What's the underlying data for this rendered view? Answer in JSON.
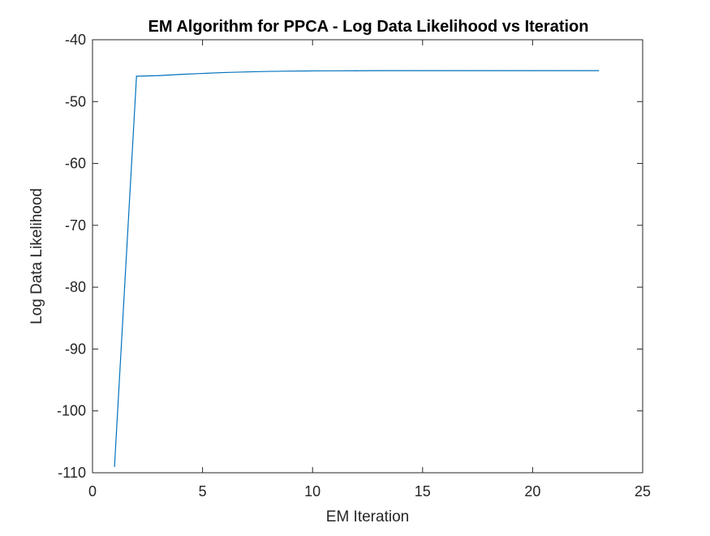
{
  "chart_data": {
    "type": "line",
    "title": "EM Algorithm for PPCA - Log Data Likelihood vs Iteration",
    "xlabel": "EM Iteration",
    "ylabel": "Log Data Likelihood",
    "xlim": [
      0,
      25
    ],
    "ylim": [
      -110,
      -40
    ],
    "xticks": [
      0,
      5,
      10,
      15,
      20,
      25
    ],
    "yticks": [
      -110,
      -100,
      -90,
      -80,
      -70,
      -60,
      -50,
      -40
    ],
    "grid": false,
    "line_color": "#0072BD",
    "series": [
      {
        "x": [
          1,
          2,
          3,
          4,
          5,
          6,
          7,
          8,
          9,
          10,
          11,
          12,
          13,
          14,
          15,
          16,
          17,
          18,
          19,
          20,
          21,
          22,
          23
        ],
        "y": [
          -109,
          -45.9,
          -45.8,
          -45.6,
          -45.45,
          -45.3,
          -45.2,
          -45.12,
          -45.07,
          -45.04,
          -45.02,
          -45.01,
          -45.0,
          -45.0,
          -45.0,
          -45.0,
          -45.0,
          -45.0,
          -45.0,
          -45.0,
          -45.0,
          -45.0,
          -45.0
        ]
      }
    ]
  }
}
